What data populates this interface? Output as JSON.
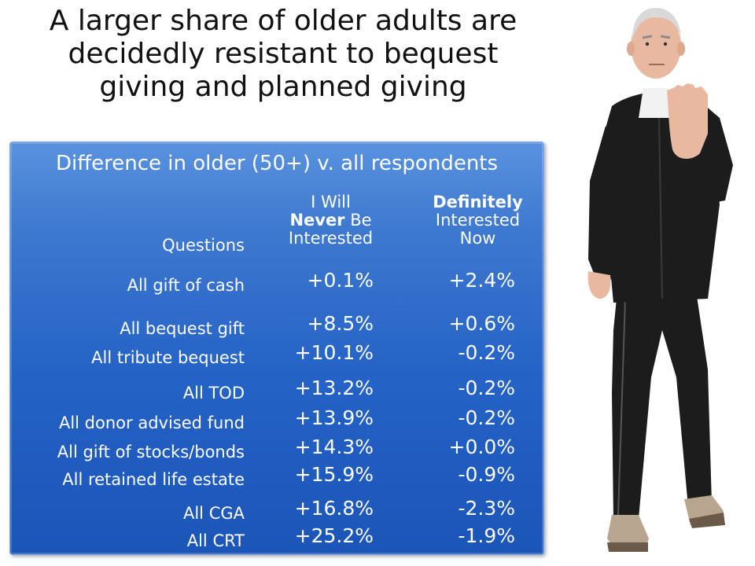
{
  "slide": {
    "title_lines": [
      "A larger share of older adults are",
      "decidedly resistant to bequest",
      "giving and planned giving"
    ]
  },
  "chart_data": {
    "type": "table",
    "title": "Difference in older (50+) v. all respondents",
    "row_header": "Questions",
    "columns": [
      {
        "lines": [
          "I Will",
          "Never Be",
          "Interested"
        ],
        "bold_word": "Never",
        "name": "I Will Never Be Interested"
      },
      {
        "lines": [
          "Definitely",
          "Interested",
          "Now"
        ],
        "bold_word": "Definitely",
        "name": "Definitely Interested Now"
      }
    ],
    "rows": [
      {
        "label": "All gift of cash",
        "values": [
          "+0.1%",
          "+2.4%"
        ],
        "numeric": [
          0.1,
          2.4
        ]
      },
      {
        "label": "All bequest gift",
        "values": [
          "+8.5%",
          "+0.6%"
        ],
        "numeric": [
          8.5,
          0.6
        ]
      },
      {
        "label": "All tribute bequest",
        "values": [
          "+10.1%",
          "-0.2%"
        ],
        "numeric": [
          10.1,
          -0.2
        ]
      },
      {
        "label": "All TOD",
        "values": [
          "+13.2%",
          "-0.2%"
        ],
        "numeric": [
          13.2,
          -0.2
        ]
      },
      {
        "label": "All donor advised fund",
        "values": [
          "+13.9%",
          "-0.2%"
        ],
        "numeric": [
          13.9,
          -0.2
        ]
      },
      {
        "label": "All gift of stocks/bonds",
        "values": [
          "+14.3%",
          "+0.0%"
        ],
        "numeric": [
          14.3,
          0.0
        ]
      },
      {
        "label": "All retained life estate",
        "values": [
          "+15.9%",
          "-0.9%"
        ],
        "numeric": [
          15.9,
          -0.9
        ]
      },
      {
        "label": "All CGA",
        "values": [
          "+16.8%",
          "-2.3%"
        ],
        "numeric": [
          16.8,
          -2.3
        ]
      },
      {
        "label": "All CRT",
        "values": [
          "+25.2%",
          "-1.9%"
        ],
        "numeric": [
          25.2,
          -1.9
        ]
      }
    ]
  },
  "photo": {
    "subject": "older man in black tracksuit with hand raised in stop gesture"
  },
  "colors": {
    "table_fill": "#2563c6",
    "table_text": "#ffffff",
    "title_text": "#111111",
    "suit": "#1c1c1c",
    "skin": "#e8b9a0"
  }
}
